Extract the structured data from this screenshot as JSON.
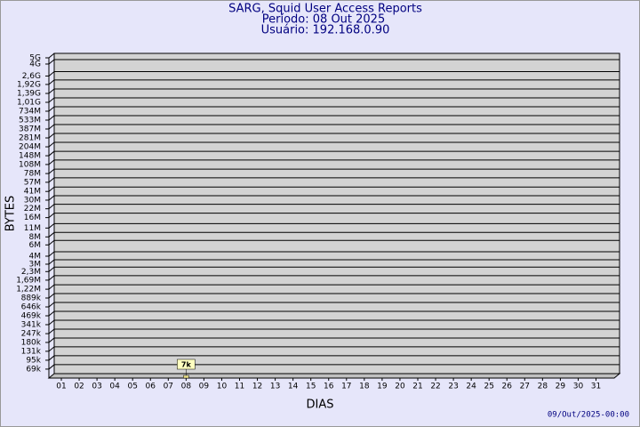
{
  "chart_data": {
    "type": "bar",
    "title": "SARG, Squid User Access Reports",
    "subtitle": [
      "Período: 08 Out 2025",
      "Usuário: 192.168.0.90"
    ],
    "xlabel": "DIAS",
    "ylabel": "BYTES",
    "footer": "09/Out/2025-00:00",
    "categories": [
      "01",
      "02",
      "03",
      "04",
      "05",
      "06",
      "07",
      "08",
      "09",
      "10",
      "11",
      "12",
      "13",
      "14",
      "15",
      "16",
      "17",
      "18",
      "19",
      "20",
      "21",
      "22",
      "23",
      "24",
      "25",
      "26",
      "27",
      "28",
      "29",
      "30",
      "31"
    ],
    "values": [
      null,
      null,
      null,
      null,
      null,
      null,
      null,
      7000,
      null,
      null,
      null,
      null,
      null,
      null,
      null,
      null,
      null,
      null,
      null,
      null,
      null,
      null,
      null,
      null,
      null,
      null,
      null,
      null,
      null,
      null,
      null
    ],
    "value_labels": [
      null,
      null,
      null,
      null,
      null,
      null,
      null,
      "7k",
      null,
      null,
      null,
      null,
      null,
      null,
      null,
      null,
      null,
      null,
      null,
      null,
      null,
      null,
      null,
      null,
      null,
      null,
      null,
      null,
      null,
      null,
      null
    ],
    "color": "#f0e68c",
    "log_scale": true,
    "grid": true,
    "ylim": [
      50000,
      5000000000
    ],
    "yticks": [
      {
        "value": 69000,
        "label": "69k"
      },
      {
        "value": 95000,
        "label": "95k"
      },
      {
        "value": 131000,
        "label": "131k"
      },
      {
        "value": 180000,
        "label": "180k"
      },
      {
        "value": 247000,
        "label": "247k"
      },
      {
        "value": 341000,
        "label": "341k"
      },
      {
        "value": 469000,
        "label": "469k"
      },
      {
        "value": 646000,
        "label": "646k"
      },
      {
        "value": 889000,
        "label": "889k"
      },
      {
        "value": 1220000,
        "label": "1,22M"
      },
      {
        "value": 1690000,
        "label": "1,69M"
      },
      {
        "value": 2300000,
        "label": "2,3M"
      },
      {
        "value": 3000000,
        "label": "3M"
      },
      {
        "value": 4000000,
        "label": "4M"
      },
      {
        "value": 6000000,
        "label": "6M"
      },
      {
        "value": 8000000,
        "label": "8M"
      },
      {
        "value": 11000000,
        "label": "11M"
      },
      {
        "value": 16000000,
        "label": "16M"
      },
      {
        "value": 22000000,
        "label": "22M"
      },
      {
        "value": 30000000,
        "label": "30M"
      },
      {
        "value": 41000000,
        "label": "41M"
      },
      {
        "value": 57000000,
        "label": "57M"
      },
      {
        "value": 78000000,
        "label": "78M"
      },
      {
        "value": 108000000,
        "label": "108M"
      },
      {
        "value": 148000000,
        "label": "148M"
      },
      {
        "value": 204000000,
        "label": "204M"
      },
      {
        "value": 281000000,
        "label": "281M"
      },
      {
        "value": 387000000,
        "label": "387M"
      },
      {
        "value": 533000000,
        "label": "533M"
      },
      {
        "value": 734000000,
        "label": "734M"
      },
      {
        "value": 1010000000,
        "label": "1,01G"
      },
      {
        "value": 1390000000,
        "label": "1,39G"
      },
      {
        "value": 1920000000,
        "label": "1,92G"
      },
      {
        "value": 2600000000,
        "label": "2,6G"
      },
      {
        "value": 4000000000,
        "label": "4G"
      },
      {
        "value": 5000000000,
        "label": "5G"
      }
    ]
  }
}
